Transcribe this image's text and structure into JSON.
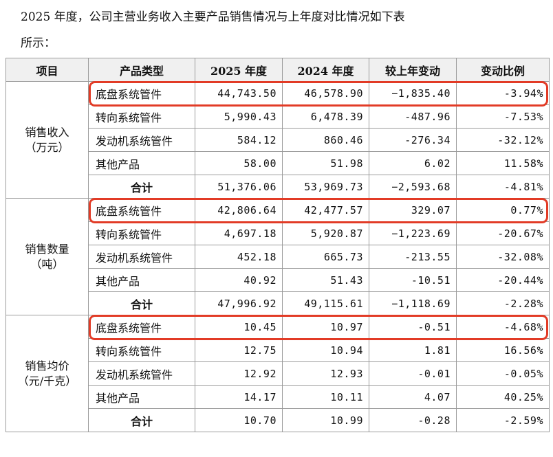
{
  "intro": {
    "line1": "2025 年度，公司主营业务收入主要产品销售情况与上年度对比情况如下表",
    "line2": "所示："
  },
  "table": {
    "header": [
      "项目",
      "产品类型",
      "2025 年度",
      "2024 年度",
      "较上年变动",
      "变动比例"
    ],
    "groups": [
      {
        "label": "销售收入",
        "unit": "（万元）",
        "rows": [
          [
            "底盘系统管件",
            "44,743.50",
            "46,578.90",
            "−1,835.40",
            "-3.94%"
          ],
          [
            "转向系统管件",
            "5,990.43",
            "6,478.39",
            "-487.96",
            "-7.53%"
          ],
          [
            "发动机系统管件",
            "584.12",
            "860.46",
            "-276.34",
            "-32.12%"
          ],
          [
            "其他产品",
            "58.00",
            "51.98",
            "6.02",
            "11.58%"
          ],
          [
            "合计",
            "51,376.06",
            "53,969.73",
            "−2,593.68",
            "-4.81%"
          ]
        ]
      },
      {
        "label": "销售数量",
        "unit": "（吨）",
        "rows": [
          [
            "底盘系统管件",
            "42,806.64",
            "42,477.57",
            "329.07",
            "0.77%"
          ],
          [
            "转向系统管件",
            "4,697.18",
            "5,920.87",
            "−1,223.69",
            "-20.67%"
          ],
          [
            "发动机系统管件",
            "452.18",
            "665.73",
            "-213.55",
            "-32.08%"
          ],
          [
            "其他产品",
            "40.92",
            "51.43",
            "-10.51",
            "-20.44%"
          ],
          [
            "合计",
            "47,996.92",
            "49,115.61",
            "−1,118.69",
            "-2.28%"
          ]
        ]
      },
      {
        "label": "销售均价",
        "unit": "（元/千克）",
        "rows": [
          [
            "底盘系统管件",
            "10.45",
            "10.97",
            "-0.51",
            "-4.68%"
          ],
          [
            "转向系统管件",
            "12.75",
            "10.94",
            "1.81",
            "16.56%"
          ],
          [
            "发动机系统管件",
            "12.92",
            "12.93",
            "-0.01",
            "-0.05%"
          ],
          [
            "其他产品",
            "14.17",
            "10.11",
            "4.07",
            "40.25%"
          ],
          [
            "合计",
            "10.70",
            "10.99",
            "-0.28",
            "-2.59%"
          ]
        ]
      }
    ]
  }
}
